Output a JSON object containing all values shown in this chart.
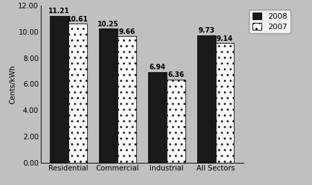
{
  "categories": [
    "Residential",
    "Commercial",
    "Industrial",
    "All Sectors"
  ],
  "values_2008": [
    11.21,
    10.25,
    6.94,
    9.73
  ],
  "values_2007": [
    10.61,
    9.66,
    6.36,
    9.14
  ],
  "ylabel": "Cents/kWh",
  "ylim": [
    0,
    12.0
  ],
  "yticks": [
    0.0,
    2.0,
    4.0,
    6.0,
    8.0,
    10.0,
    12.0
  ],
  "bar_color_2008": "#1a1a1a",
  "bar_color_2007": "#ffffff",
  "bar_hatch_2007": "..",
  "bar_edgecolor": "#1a1a1a",
  "background_color": "#c0c0c0",
  "plot_bg_color": "#c0c0c0",
  "legend_2008": "2008",
  "legend_2007": "2007",
  "bar_width": 0.38,
  "label_fontsize": 7,
  "axis_fontsize": 7.5,
  "legend_fontsize": 8
}
